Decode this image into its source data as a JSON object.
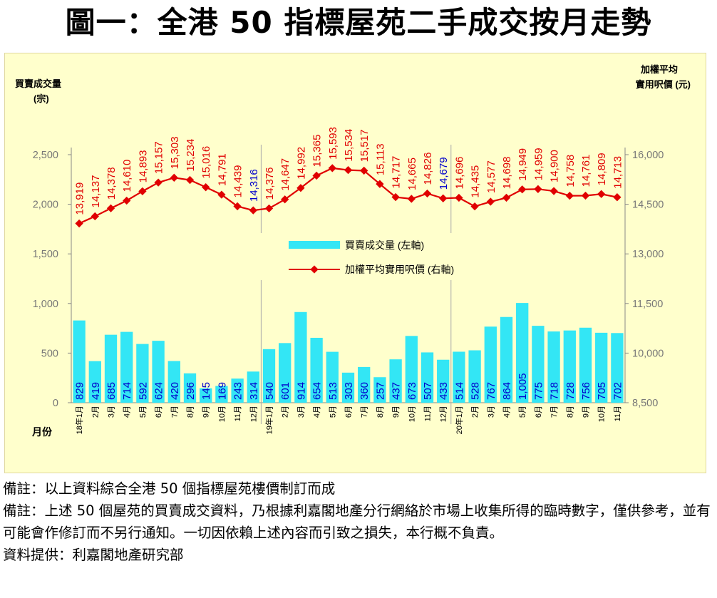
{
  "title": "圖一：全港 50 指標屋苑二手成交按月走勢",
  "notes": {
    "line1": "備註：以上資料綜合全港 50 個指標屋苑樓價制訂而成",
    "line2": "備註：上述 50 個屋苑的買賣成交資料，乃根據利嘉閣地產分行網絡於市場上收集所得的臨時數字，僅供參考，並有可能會作修訂而不另行通知。一切因依賴上述內容而引致之損失，本行概不負責。",
    "line3": "資料提供：利嘉閣地產研究部"
  },
  "chart_data": {
    "type": "bar+line",
    "left_axis_title_1": "買賣成交量",
    "left_axis_title_2": "(宗)",
    "right_axis_title_1": "加權平均",
    "right_axis_title_2": "實用呎價 (元)",
    "x_axis_title": "月份",
    "left_ylim": [
      0,
      2500
    ],
    "left_ticks": [
      "0",
      "500",
      "1,000",
      "1,500",
      "2,000",
      "2,500"
    ],
    "right_ylim": [
      8500,
      16000
    ],
    "right_ticks": [
      "8,500",
      "10,000",
      "11,500",
      "13,000",
      "14,500",
      "16,000"
    ],
    "categories": [
      "18年1月",
      "2月",
      "3月",
      "4月",
      "5月",
      "6月",
      "7月",
      "8月",
      "9月",
      "10月",
      "11月",
      "12月",
      "19年1月",
      "2月",
      "3月",
      "4月",
      "5月",
      "6月",
      "7月",
      "8月",
      "9月",
      "10月",
      "11月",
      "12月",
      "20年1月",
      "2月",
      "3月",
      "4月",
      "5月",
      "6月",
      "7月",
      "8月",
      "9月",
      "10月",
      "11月"
    ],
    "bar_series": {
      "name": "買賣成交量 (左軸)",
      "color": "#33e6f5",
      "label_color": "#0000cc",
      "values": [
        829,
        419,
        685,
        714,
        592,
        624,
        420,
        296,
        145,
        169,
        243,
        314,
        540,
        601,
        914,
        654,
        513,
        303,
        360,
        257,
        437,
        673,
        507,
        433,
        514,
        528,
        767,
        864,
        1005,
        775,
        718,
        728,
        756,
        705,
        702
      ],
      "labels": [
        "829",
        "419",
        "685",
        "714",
        "592",
        "624",
        "420",
        "296",
        "145",
        "169",
        "243",
        "314",
        "540",
        "601",
        "914",
        "654",
        "513",
        "303",
        "360",
        "257",
        "437",
        "673",
        "507",
        "433",
        "514",
        "528",
        "767",
        "864",
        "1,005",
        "775",
        "718",
        "728",
        "756",
        "705",
        "702"
      ]
    },
    "line_series": {
      "name": "加權平均實用呎價 (右軸)",
      "color": "#e00000",
      "highlight_color": "#0000cc",
      "highlight_indices": [
        11,
        23
      ],
      "values": [
        13919,
        14137,
        14378,
        14610,
        14893,
        15157,
        15303,
        15234,
        15016,
        14791,
        14439,
        14316,
        14376,
        14647,
        14992,
        15365,
        15593,
        15534,
        15517,
        15113,
        14717,
        14665,
        14826,
        14679,
        14696,
        14435,
        14577,
        14698,
        14949,
        14959,
        14900,
        14758,
        14761,
        14809,
        14713
      ],
      "labels": [
        "13,919",
        "14,137",
        "14,378",
        "14,610",
        "14,893",
        "15,157",
        "15,303",
        "15,234",
        "15,016",
        "14,791",
        "14,439",
        "14,316",
        "14,376",
        "14,647",
        "14,992",
        "15,365",
        "15,593",
        "15,534",
        "15,517",
        "15,113",
        "14,717",
        "14,665",
        "14,826",
        "14,679",
        "14,696",
        "14,435",
        "14,577",
        "14,698",
        "14,949",
        "14,959",
        "14,900",
        "14,758",
        "14,761",
        "14,809",
        "14,713"
      ]
    },
    "year_dividers_before": [
      12,
      24
    ]
  }
}
